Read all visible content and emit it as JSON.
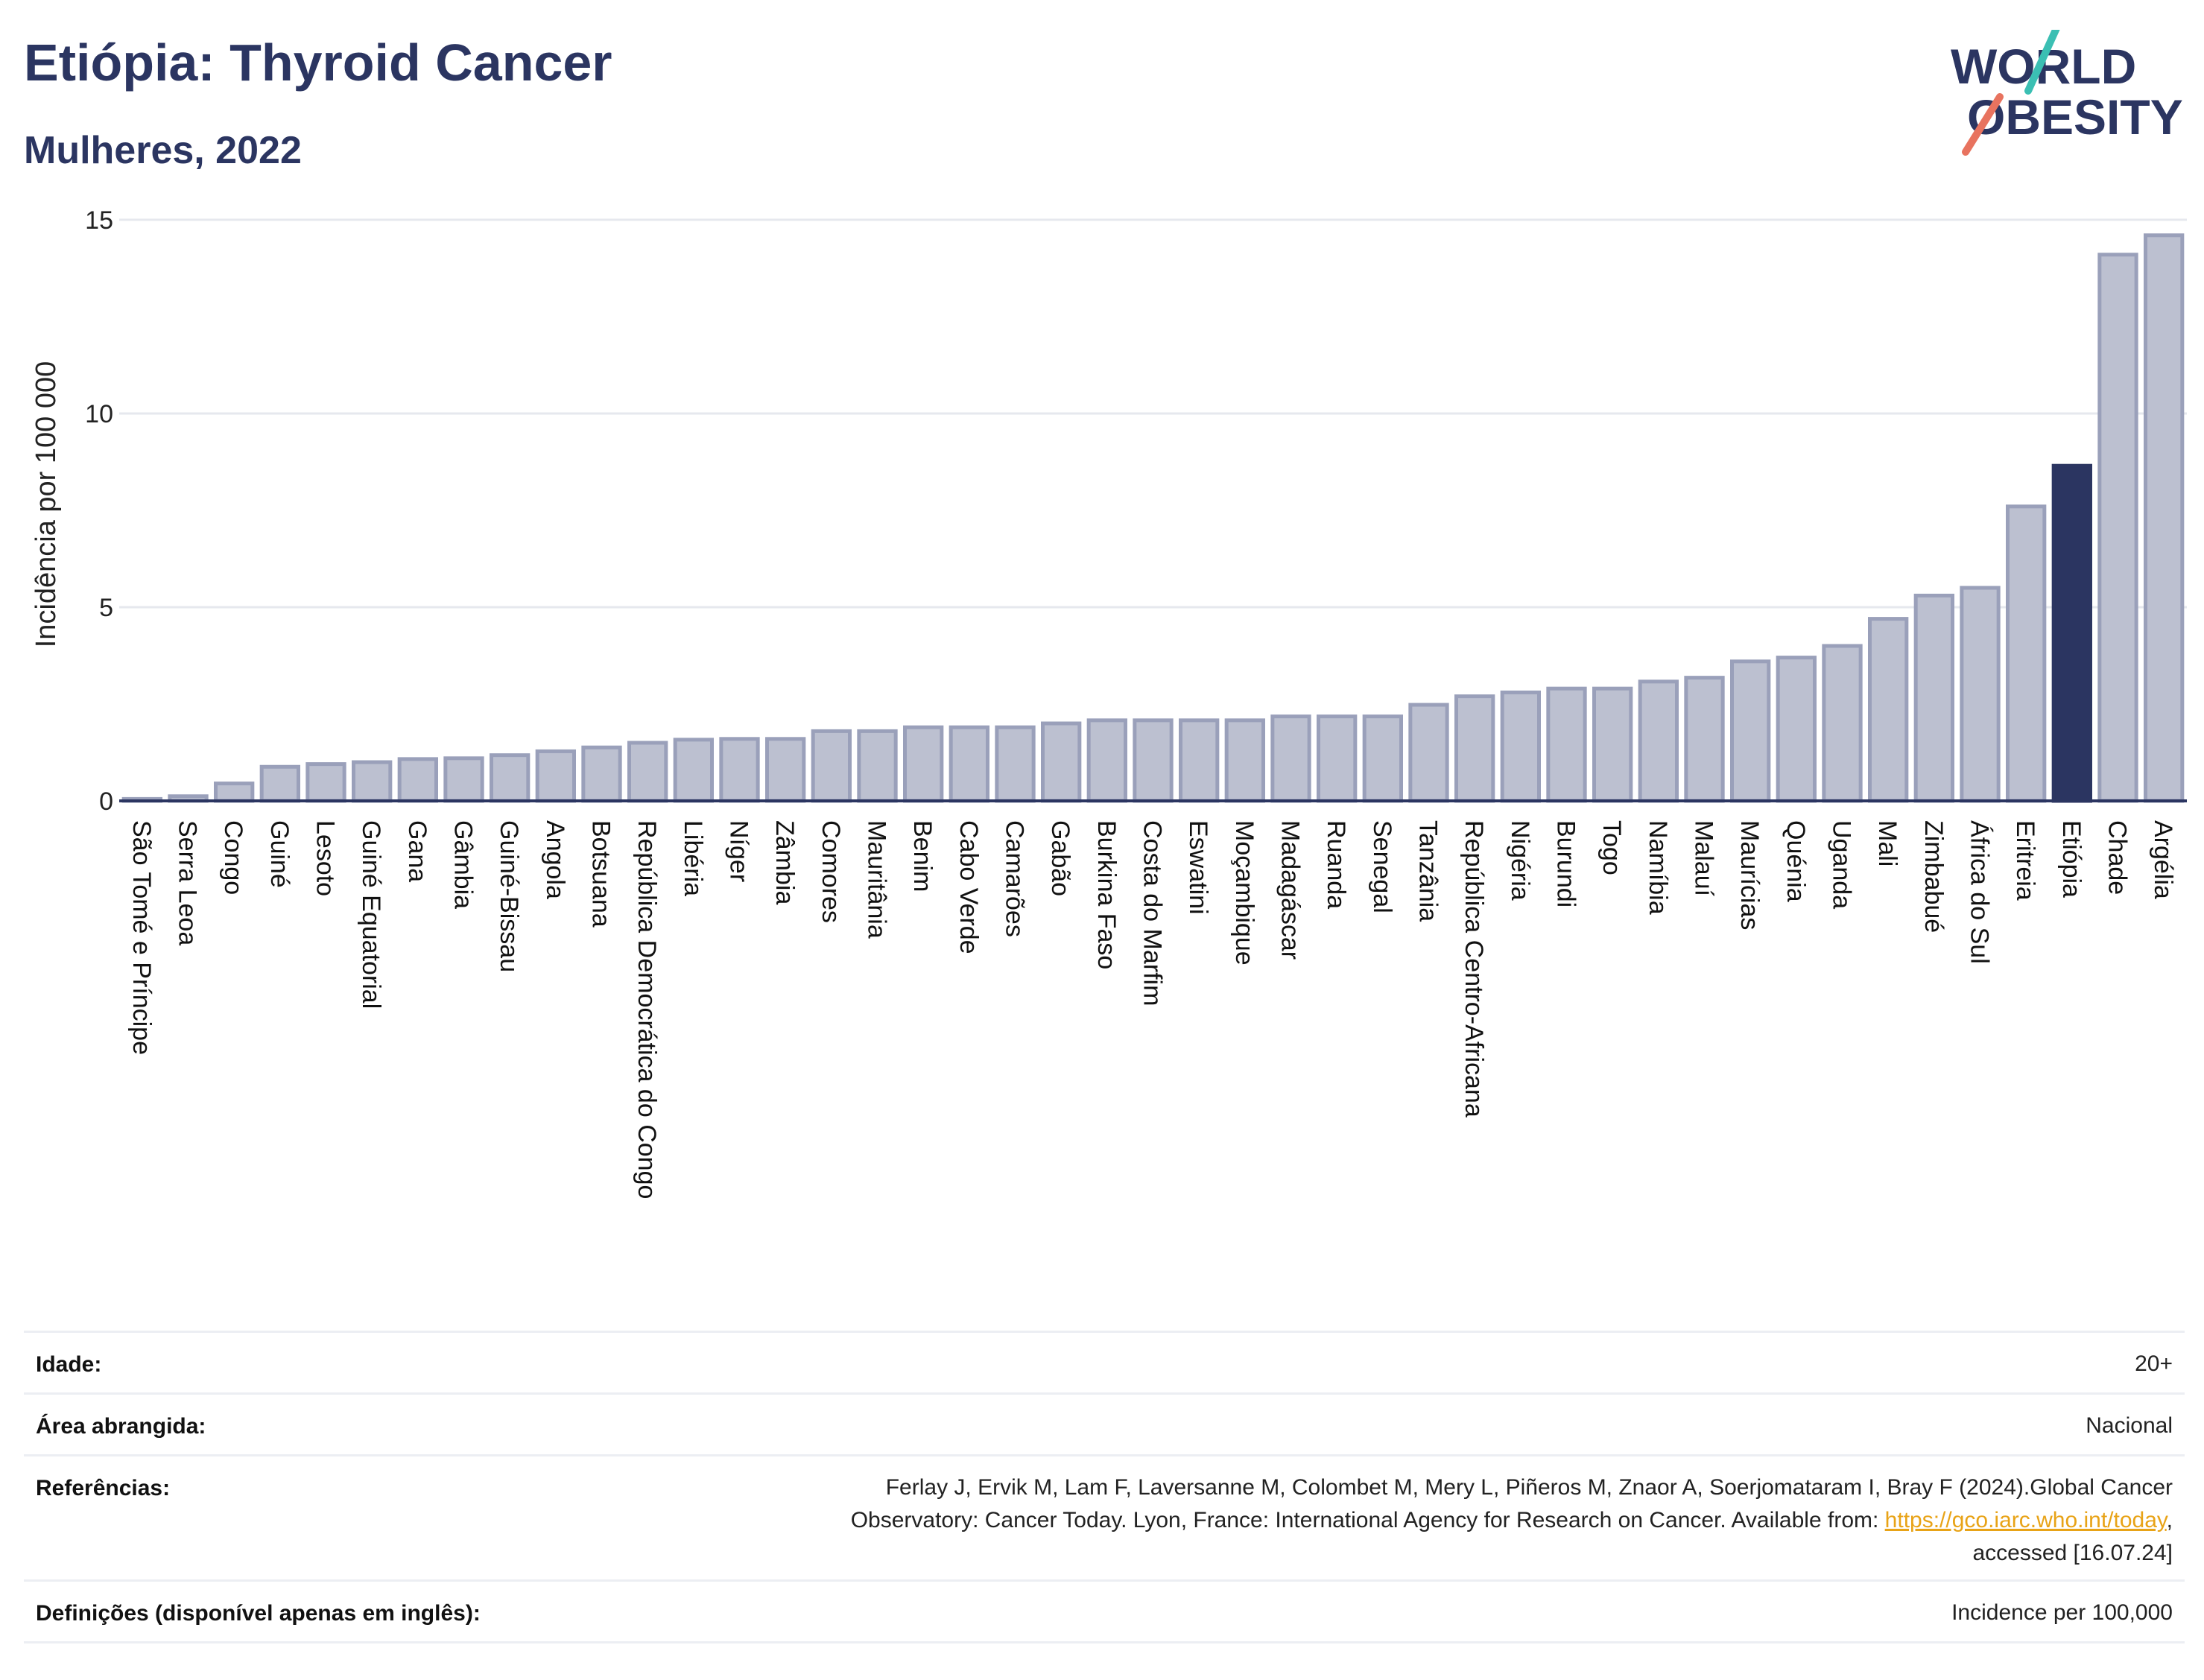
{
  "title": "Etiópia: Thyroid Cancer",
  "subtitle": "Mulheres, 2022",
  "logo": {
    "line1": "WORLD",
    "line2": "OBESITY",
    "colors": [
      "#2b3561",
      "#3bbfb3",
      "#e8735f"
    ]
  },
  "colors": {
    "bar": "#bcc0d0",
    "bar_border": "#9aa0ba",
    "highlight": "#2b3561",
    "grid": "#e6e8ee",
    "axis": "#2b3561"
  },
  "chart_data": {
    "type": "bar",
    "title": "Etiópia: Thyroid Cancer",
    "subtitle": "Mulheres, 2022",
    "ylabel": "Incidência por 100 000",
    "xlabel": "",
    "ylim": [
      0,
      15
    ],
    "yticks": [
      0,
      5,
      10,
      15
    ],
    "grid": true,
    "highlight": "Etiópia",
    "categories": [
      "São Tomé e Príncipe",
      "Serra Leoa",
      "Congo",
      "Guiné",
      "Lesoto",
      "Guiné Equatorial",
      "Gana",
      "Gâmbia",
      "Guiné-Bissau",
      "Angola",
      "Botsuana",
      "República Democrática do Congo",
      "Libéria",
      "Níger",
      "Zâmbia",
      "Comores",
      "Mauritânia",
      "Benim",
      "Cabo Verde",
      "Camarões",
      "Gabão",
      "Burkina Faso",
      "Costa do Marfim",
      "Eswatini",
      "Moçambique",
      "Madagáscar",
      "Ruanda",
      "Senegal",
      "Tanzânia",
      "República Centro-Africana",
      "Nigéria",
      "Burundi",
      "Togo",
      "Namíbia",
      "Malauí",
      "Maurícias",
      "Quénia",
      "Uganda",
      "Mali",
      "Zimbabué",
      "África do Sul",
      "Eritreia",
      "Etiópia",
      "Chade",
      "Argélia"
    ],
    "values": [
      0.05,
      0.12,
      0.45,
      0.88,
      0.95,
      1.0,
      1.08,
      1.1,
      1.18,
      1.28,
      1.38,
      1.5,
      1.58,
      1.6,
      1.6,
      1.8,
      1.8,
      1.9,
      1.9,
      1.9,
      2.0,
      2.08,
      2.08,
      2.08,
      2.08,
      2.18,
      2.18,
      2.18,
      2.48,
      2.7,
      2.8,
      2.9,
      2.9,
      3.08,
      3.18,
      3.6,
      3.7,
      4.0,
      4.7,
      5.3,
      5.5,
      7.6,
      8.65,
      14.1,
      14.6
    ]
  },
  "meta": {
    "rows": [
      {
        "label": "Idade:",
        "value": "20+"
      },
      {
        "label": "Área abrangida:",
        "value": "Nacional"
      },
      {
        "label": "Referências:",
        "value_line1": "Ferlay J, Ervik M, Lam F, Laversanne M, Colombet M, Mery L, Piñeros M, Znaor A, Soerjomataram I, Bray F (2024).Global Cancer",
        "value_line2_pre": "Observatory: Cancer Today. Lyon, France: International Agency for Research on Cancer. Available from: ",
        "link": "https://gco.iarc.who.int/today",
        "value_line2_post": ",",
        "value_line3": "accessed [16.07.24]"
      },
      {
        "label": "Definições (disponível apenas em inglês):",
        "value": "Incidence per 100,000"
      }
    ]
  }
}
